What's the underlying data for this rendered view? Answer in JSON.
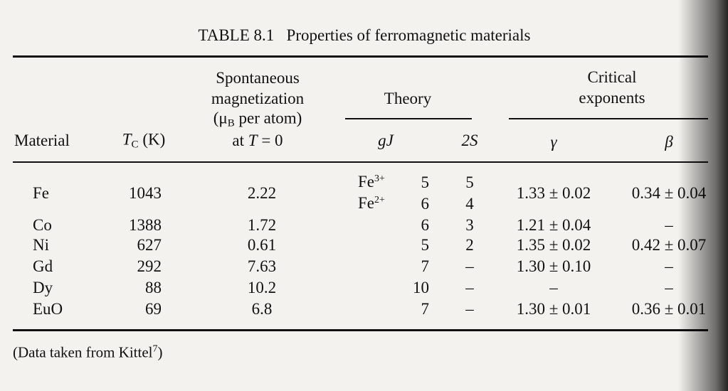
{
  "title": {
    "label": "TABLE 8.1",
    "text": "Properties of ferromagnetic materials"
  },
  "table": {
    "headers": {
      "material": "Material",
      "tc": {
        "main": "T",
        "sub": "C",
        "rest": " (K)"
      },
      "magnetization": {
        "line1": "Spontaneous",
        "line2": "magnetization",
        "line3_open": "(μ",
        "line3_sub": "B",
        "line3_rest": " per atom)",
        "line4_pre": "at ",
        "line4_var": "T",
        "line4_rest": " = 0"
      },
      "theory": "Theory",
      "gJ": "gJ",
      "twoS": "2S",
      "critical": {
        "line1": "Critical",
        "line2": "exponents"
      },
      "gamma": "γ",
      "beta": "β"
    },
    "rows": [
      {
        "material": "Fe",
        "tc": "1043",
        "ms": "2.22",
        "theory": [
          {
            "ion": "Fe",
            "charge": "3+",
            "gJ": "5",
            "twoS": "5"
          },
          {
            "ion": "Fe",
            "charge": "2+",
            "gJ": "6",
            "twoS": "4"
          }
        ],
        "gamma": "1.33 ± 0.02",
        "beta": "0.34 ± 0.04"
      },
      {
        "material": "Co",
        "tc": "1388",
        "ms": "1.72",
        "theory": [
          {
            "gJ": "6",
            "twoS": "3"
          }
        ],
        "gamma": "1.21 ± 0.04",
        "beta": "–"
      },
      {
        "material": "Ni",
        "tc": "627",
        "ms": "0.61",
        "theory": [
          {
            "gJ": "5",
            "twoS": "2"
          }
        ],
        "gamma": "1.35 ± 0.02",
        "beta": "0.42 ± 0.07"
      },
      {
        "material": "Gd",
        "tc": "292",
        "ms": "7.63",
        "theory": [
          {
            "gJ": "7",
            "twoS": "–"
          }
        ],
        "gamma": "1.30 ± 0.10",
        "beta": "–"
      },
      {
        "material": "Dy",
        "tc": "88",
        "ms": "10.2",
        "theory": [
          {
            "gJ": "10",
            "twoS": "–"
          }
        ],
        "gamma": "–",
        "beta": "–"
      },
      {
        "material": "EuO",
        "tc": "69",
        "ms": "6.8",
        "theory": [
          {
            "gJ": "7",
            "twoS": "–"
          }
        ],
        "gamma": "1.30 ± 0.01",
        "beta": "0.36 ± 0.01"
      }
    ]
  },
  "footnote": {
    "text": "(Data taken from Kittel",
    "sup": "7",
    "close": ")"
  }
}
